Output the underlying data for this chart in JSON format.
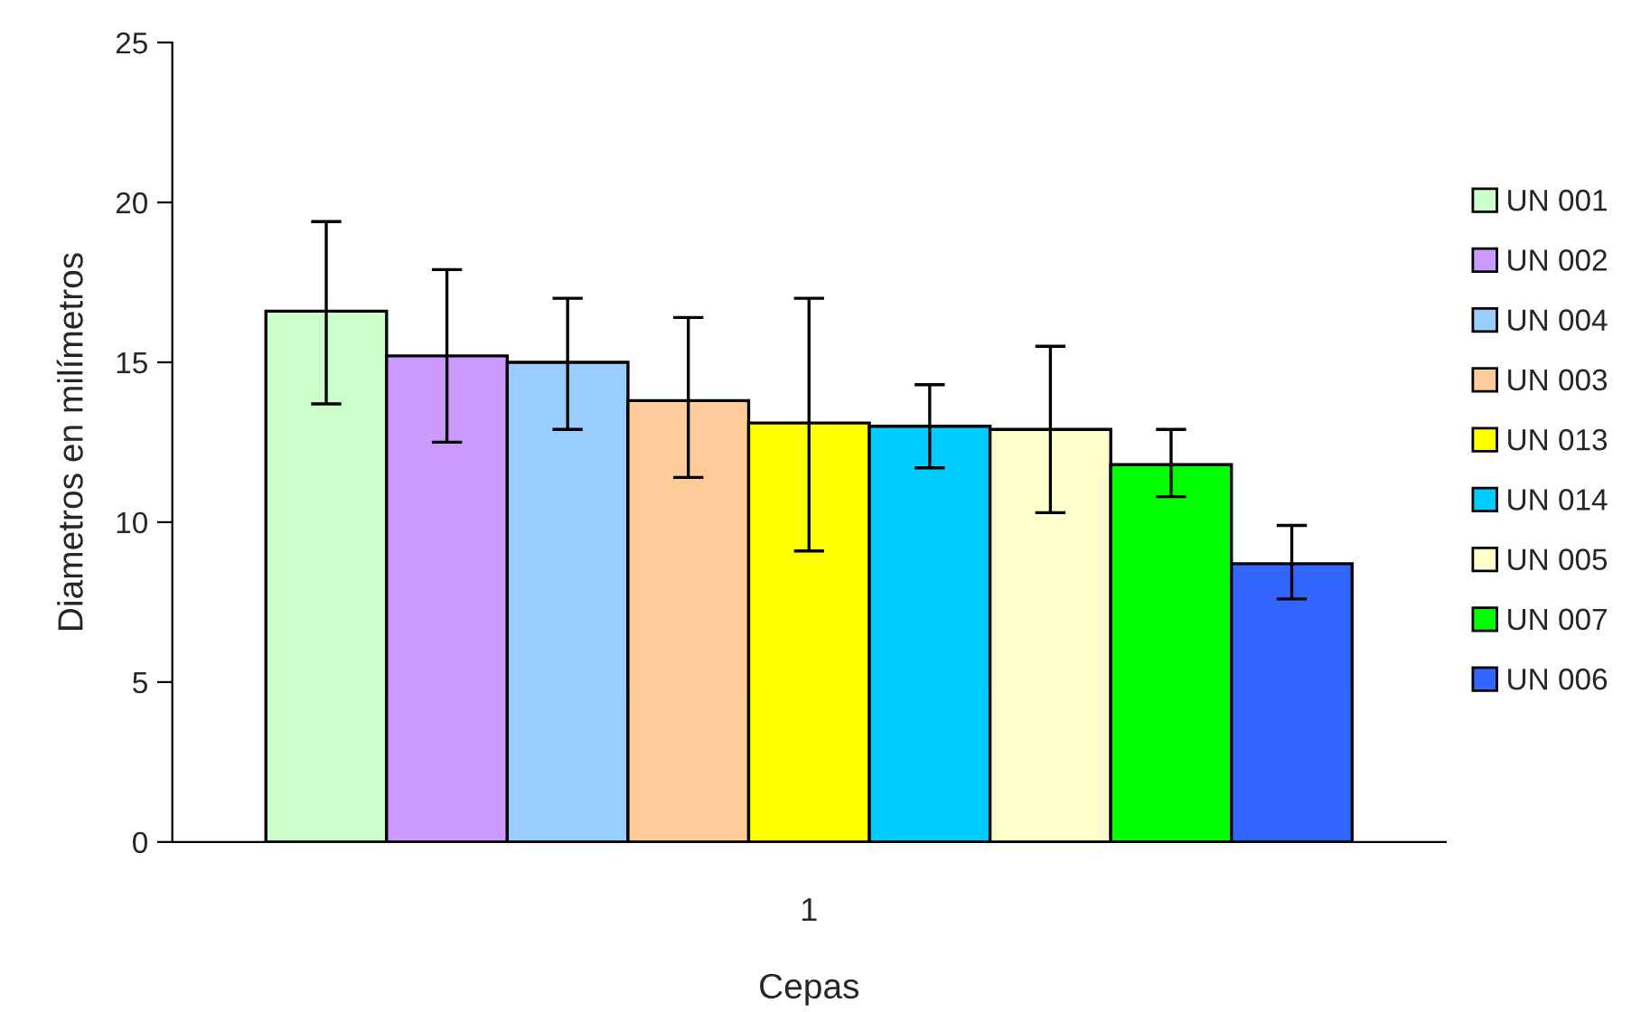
{
  "chart_data": {
    "type": "bar",
    "xlabel": "Cepas",
    "ylabel": "Diametros en milímetros",
    "categories": [
      "1"
    ],
    "series": [
      {
        "name": "UN 001",
        "color": "#ccffcc",
        "values": [
          16.6
        ],
        "errors": [
          [
            13.7,
            19.4
          ]
        ]
      },
      {
        "name": "UN 002",
        "color": "#cc99ff",
        "values": [
          15.2
        ],
        "errors": [
          [
            12.5,
            17.9
          ]
        ]
      },
      {
        "name": "UN 004",
        "color": "#99ccff",
        "values": [
          15.0
        ],
        "errors": [
          [
            12.9,
            17.0
          ]
        ]
      },
      {
        "name": "UN 003",
        "color": "#ffcc99",
        "values": [
          13.8
        ],
        "errors": [
          [
            11.4,
            16.4
          ]
        ]
      },
      {
        "name": "UN 013",
        "color": "#ffff00",
        "values": [
          13.1
        ],
        "errors": [
          [
            9.1,
            17.0
          ]
        ]
      },
      {
        "name": "UN 014",
        "color": "#00ccff",
        "values": [
          13.0
        ],
        "errors": [
          [
            11.7,
            14.3
          ]
        ]
      },
      {
        "name": "UN 005",
        "color": "#ffffcc",
        "values": [
          12.9
        ],
        "errors": [
          [
            10.3,
            15.5
          ]
        ]
      },
      {
        "name": "UN 007",
        "color": "#00ff00",
        "values": [
          11.8
        ],
        "errors": [
          [
            10.8,
            12.9
          ]
        ]
      },
      {
        "name": "UN 006",
        "color": "#3366ff",
        "values": [
          8.7
        ],
        "errors": [
          [
            7.6,
            9.9
          ]
        ]
      }
    ],
    "ylim": [
      0,
      25
    ],
    "yticks": [
      0,
      5,
      10,
      15,
      20,
      25
    ],
    "grid": false,
    "legend": "right"
  }
}
